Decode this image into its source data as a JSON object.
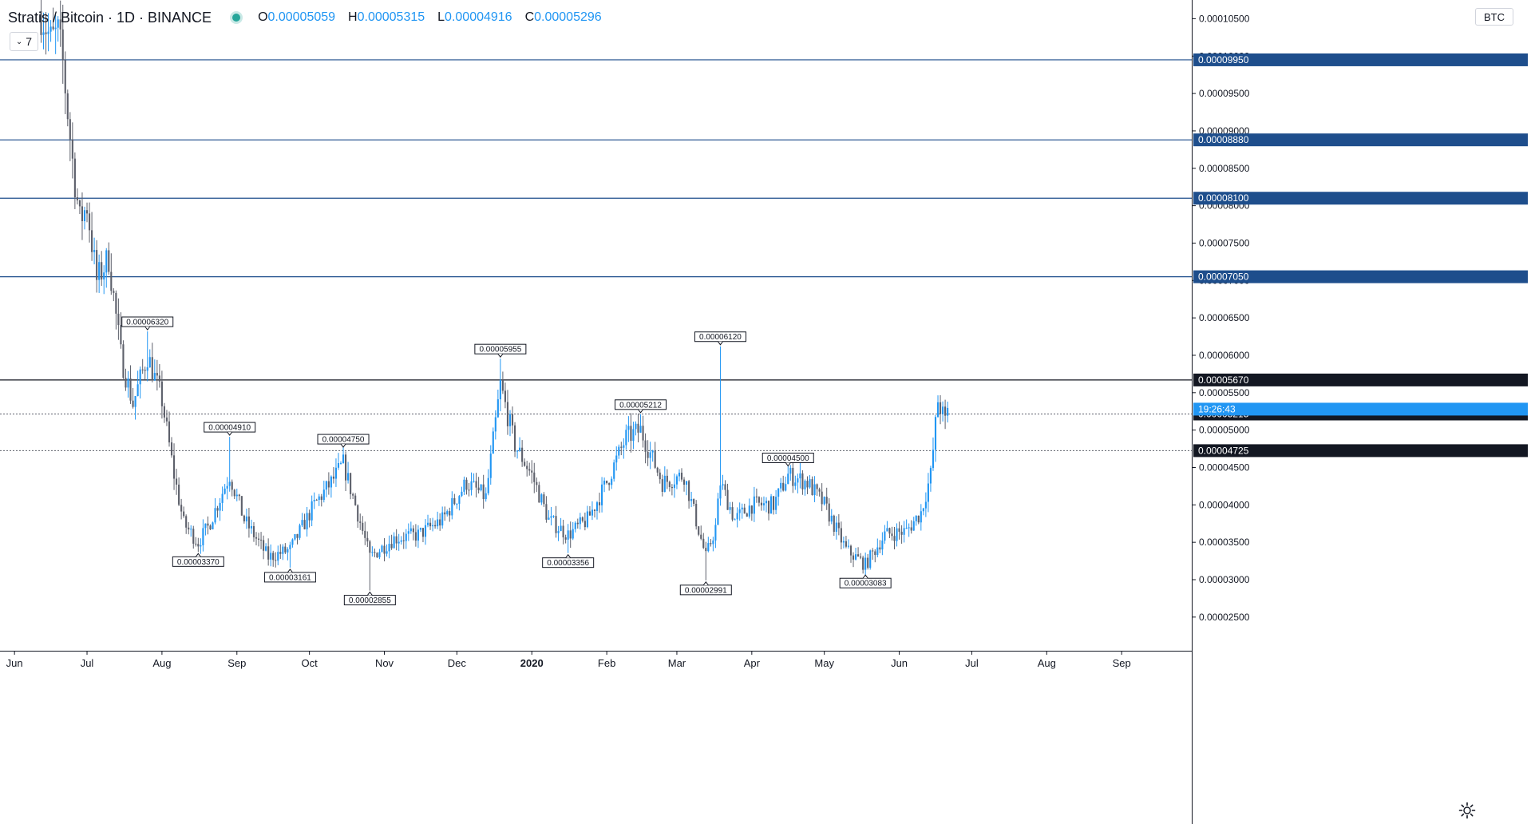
{
  "legend": {
    "title": "Stratis / Bitcoin · 1D · BINANCE",
    "open_label": "O",
    "open": "0.00005059",
    "high_label": "H",
    "high": "0.00005315",
    "low_label": "L",
    "low": "0.00004916",
    "close_label": "C",
    "close": "0.00005296",
    "indicators_count": "7"
  },
  "currency": "BTC",
  "colors": {
    "up": "#2196f3",
    "down": "#5d606b",
    "level": "#1e4e8c",
    "last": "#131722",
    "axis_text": "#131722",
    "grid_border": "#e0e3eb"
  },
  "chart_data": {
    "type": "candlestick",
    "symbol": "Stratis / Bitcoin",
    "interval": "1D",
    "exchange": "BINANCE",
    "y_ticks": [
      "0.00002500",
      "0.00003000",
      "0.00003500",
      "0.00004000",
      "0.00004500",
      "0.00005000",
      "0.00005500",
      "0.00006000",
      "0.00006500",
      "0.00007000",
      "0.00007500",
      "0.00008000",
      "0.00008500",
      "0.00009000",
      "0.00009500",
      "0.00010000",
      "0.00010500"
    ],
    "y_range": [
      2.05e-05,
      0.0001075
    ],
    "x_range": [
      "2019-05-26",
      "2020-09-30"
    ],
    "x_ticks": [
      {
        "label": "Jun",
        "date": "2019-06-01"
      },
      {
        "label": "Jul",
        "date": "2019-07-01"
      },
      {
        "label": "Aug",
        "date": "2019-08-01"
      },
      {
        "label": "Sep",
        "date": "2019-09-01"
      },
      {
        "label": "Oct",
        "date": "2019-10-01"
      },
      {
        "label": "Nov",
        "date": "2019-11-01"
      },
      {
        "label": "Dec",
        "date": "2019-12-01"
      },
      {
        "label": "2020",
        "date": "2020-01-01",
        "bold": true
      },
      {
        "label": "Feb",
        "date": "2020-02-01"
      },
      {
        "label": "Mar",
        "date": "2020-03-01"
      },
      {
        "label": "Apr",
        "date": "2020-04-01"
      },
      {
        "label": "May",
        "date": "2020-05-01"
      },
      {
        "label": "Jun",
        "date": "2020-06-01"
      },
      {
        "label": "Jul",
        "date": "2020-07-01"
      },
      {
        "label": "Aug",
        "date": "2020-08-01"
      },
      {
        "label": "Sep",
        "date": "2020-09-01"
      }
    ],
    "horizontal_levels": [
      {
        "price": 9.95e-05,
        "label": "0.00009950",
        "style": "solid",
        "badge": "blue"
      },
      {
        "price": 8.88e-05,
        "label": "0.00008880",
        "style": "solid",
        "badge": "blue"
      },
      {
        "price": 8.1e-05,
        "label": "0.00008100",
        "style": "solid",
        "badge": "blue"
      },
      {
        "price": 7.05e-05,
        "label": "0.00007050",
        "style": "solid",
        "badge": "blue"
      },
      {
        "price": 5.67e-05,
        "label": "0.00005670",
        "style": "solid",
        "badge": "dark"
      },
      {
        "price": 5.215e-05,
        "label": "0.00005215",
        "style": "dotted",
        "badge": "dark"
      },
      {
        "price": 4.725e-05,
        "label": "0.00004725",
        "style": "dotted",
        "badge": "dark"
      }
    ],
    "countdown": {
      "label": "19:26:43",
      "price": 5.28e-05
    },
    "annotations": [
      {
        "date": "2019-07-26",
        "price": 6.32e-05,
        "label": "0.00006320",
        "pos": "above"
      },
      {
        "date": "2019-08-16",
        "price": 3.37e-05,
        "label": "0.00003370",
        "pos": "below"
      },
      {
        "date": "2019-08-29",
        "price": 4.91e-05,
        "label": "0.00004910",
        "pos": "above"
      },
      {
        "date": "2019-09-23",
        "price": 3.161e-05,
        "label": "0.00003161",
        "pos": "below"
      },
      {
        "date": "2019-10-15",
        "price": 4.75e-05,
        "label": "0.00004750",
        "pos": "above"
      },
      {
        "date": "2019-10-26",
        "price": 2.855e-05,
        "label": "0.00002855",
        "pos": "below"
      },
      {
        "date": "2019-12-19",
        "price": 5.955e-05,
        "label": "0.00005955",
        "pos": "above"
      },
      {
        "date": "2020-01-16",
        "price": 3.356e-05,
        "label": "0.00003356",
        "pos": "below"
      },
      {
        "date": "2020-02-15",
        "price": 5.212e-05,
        "label": "0.00005212",
        "pos": "above"
      },
      {
        "date": "2020-03-13",
        "price": 2.991e-05,
        "label": "0.00002991",
        "pos": "below"
      },
      {
        "date": "2020-03-19",
        "price": 6.12e-05,
        "label": "0.00006120",
        "pos": "above"
      },
      {
        "date": "2020-04-16",
        "price": 4.5e-05,
        "label": "0.00004500",
        "pos": "above"
      },
      {
        "date": "2020-05-18",
        "price": 3.083e-05,
        "label": "0.00003083",
        "pos": "below"
      }
    ],
    "anchors": [
      [
        "2019-06-12",
        0.000106
      ],
      [
        "2019-06-16",
        0.000102
      ],
      [
        "2019-06-19",
        0.000103
      ],
      [
        "2019-06-21",
        9.9e-05
      ],
      [
        "2019-06-25",
        8.6e-05
      ],
      [
        "2019-06-28",
        7.8e-05
      ],
      [
        "2019-07-01",
        8e-05
      ],
      [
        "2019-07-05",
        7e-05
      ],
      [
        "2019-07-10",
        7.3e-05
      ],
      [
        "2019-07-15",
        6e-05
      ],
      [
        "2019-07-20",
        5.35e-05
      ],
      [
        "2019-07-26",
        6e-05
      ],
      [
        "2019-08-01",
        5.4e-05
      ],
      [
        "2019-08-06",
        4.4e-05
      ],
      [
        "2019-08-10",
        3.75e-05
      ],
      [
        "2019-08-16",
        3.5e-05
      ],
      [
        "2019-08-20",
        3.7e-05
      ],
      [
        "2019-08-29",
        4.4e-05
      ],
      [
        "2019-09-04",
        3.8e-05
      ],
      [
        "2019-09-14",
        3.3e-05
      ],
      [
        "2019-09-23",
        3.4e-05
      ],
      [
        "2019-10-03",
        4e-05
      ],
      [
        "2019-10-10",
        4.3e-05
      ],
      [
        "2019-10-15",
        4.55e-05
      ],
      [
        "2019-10-20",
        4e-05
      ],
      [
        "2019-10-26",
        3.3e-05
      ],
      [
        "2019-11-05",
        3.55e-05
      ],
      [
        "2019-11-15",
        3.6e-05
      ],
      [
        "2019-11-25",
        3.8e-05
      ],
      [
        "2019-12-05",
        4.3e-05
      ],
      [
        "2019-12-13",
        4.1e-05
      ],
      [
        "2019-12-19",
        5.6e-05
      ],
      [
        "2019-12-25",
        4.8e-05
      ],
      [
        "2020-01-01",
        4.4e-05
      ],
      [
        "2020-01-08",
        3.8e-05
      ],
      [
        "2020-01-16",
        3.6e-05
      ],
      [
        "2020-01-24",
        3.8e-05
      ],
      [
        "2020-02-01",
        4.3e-05
      ],
      [
        "2020-02-09",
        4.9e-05
      ],
      [
        "2020-02-15",
        5e-05
      ],
      [
        "2020-02-24",
        4.3e-05
      ],
      [
        "2020-03-04",
        4.4e-05
      ],
      [
        "2020-03-13",
        3.3e-05
      ],
      [
        "2020-03-17",
        3.7e-05
      ],
      [
        "2020-03-19",
        4.3e-05
      ],
      [
        "2020-03-25",
        3.8e-05
      ],
      [
        "2020-04-01",
        4e-05
      ],
      [
        "2020-04-10",
        4e-05
      ],
      [
        "2020-04-16",
        4.4e-05
      ],
      [
        "2020-04-24",
        4.3e-05
      ],
      [
        "2020-05-01",
        4e-05
      ],
      [
        "2020-05-10",
        3.4e-05
      ],
      [
        "2020-05-18",
        3.2e-05
      ],
      [
        "2020-05-26",
        3.6e-05
      ],
      [
        "2020-06-04",
        3.65e-05
      ],
      [
        "2020-06-10",
        3.9e-05
      ],
      [
        "2020-06-14",
        4.4e-05
      ],
      [
        "2020-06-17",
        5.4e-05
      ],
      [
        "2020-06-20",
        5.1e-05
      ],
      [
        "2020-06-21",
        5.296e-05
      ]
    ]
  }
}
